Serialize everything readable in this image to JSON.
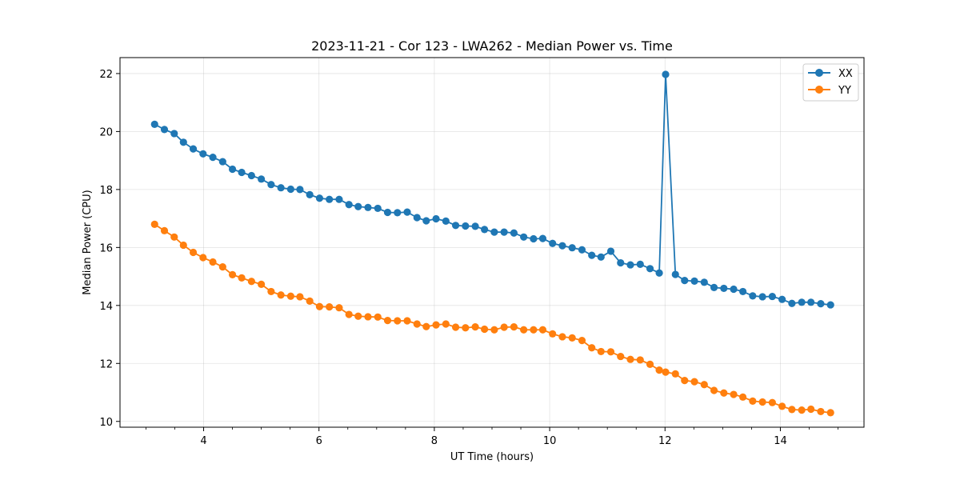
{
  "chart_data": {
    "type": "line",
    "title": "2023-11-21 - Cor 123 - LWA262 - Median Power vs. Time",
    "xlabel": "UT Time (hours)",
    "ylabel": "Median Power (CPU)",
    "xlim": [
      2.55,
      15.45
    ],
    "ylim": [
      9.8,
      22.55
    ],
    "xticks": [
      4,
      6,
      8,
      10,
      12,
      14
    ],
    "xticks_minor": [
      3.0,
      3.5,
      4.5,
      5.0,
      5.5,
      6.5,
      7.0,
      7.5,
      8.5,
      9.0,
      9.5,
      10.5,
      11.0,
      11.5,
      12.5,
      13.0,
      13.5,
      14.5,
      15.0
    ],
    "yticks": [
      10,
      12,
      14,
      16,
      18,
      20,
      22
    ],
    "grid": true,
    "legend_position": "top-right",
    "x": [
      3.15,
      3.32,
      3.49,
      3.65,
      3.82,
      3.99,
      4.16,
      4.33,
      4.5,
      4.66,
      4.83,
      5.0,
      5.17,
      5.34,
      5.51,
      5.67,
      5.84,
      6.01,
      6.18,
      6.35,
      6.52,
      6.68,
      6.85,
      7.02,
      7.19,
      7.36,
      7.53,
      7.7,
      7.86,
      8.03,
      8.2,
      8.37,
      8.54,
      8.71,
      8.87,
      9.04,
      9.21,
      9.38,
      9.55,
      9.72,
      9.88,
      10.05,
      10.22,
      10.39,
      10.56,
      10.73,
      10.89,
      11.06,
      11.23,
      11.4,
      11.57,
      11.74,
      11.9,
      12.01,
      12.18,
      12.34,
      12.51,
      12.68,
      12.85,
      13.02,
      13.19,
      13.35,
      13.52,
      13.69,
      13.86,
      14.03,
      14.2,
      14.37,
      14.53,
      14.7,
      14.87
    ],
    "series": [
      {
        "name": "XX",
        "color": "#1f77b4",
        "values": [
          20.25,
          20.07,
          19.93,
          19.63,
          19.4,
          19.23,
          19.11,
          18.96,
          18.7,
          18.59,
          18.48,
          18.36,
          18.17,
          18.06,
          18.01,
          18.0,
          17.82,
          17.7,
          17.66,
          17.66,
          17.48,
          17.41,
          17.38,
          17.35,
          17.21,
          17.2,
          17.22,
          17.03,
          16.92,
          16.99,
          16.91,
          16.76,
          16.74,
          16.73,
          16.62,
          16.53,
          16.53,
          16.5,
          16.36,
          16.3,
          16.31,
          16.14,
          16.06,
          15.99,
          15.92,
          15.73,
          15.67,
          15.87,
          15.47,
          15.4,
          15.42,
          15.27,
          15.12,
          21.97,
          15.07,
          14.86,
          14.84,
          14.8,
          14.62,
          14.59,
          14.56,
          14.48,
          14.33,
          14.3,
          14.31,
          14.21,
          14.07,
          14.11,
          14.11,
          14.06,
          14.02
        ]
      },
      {
        "name": "YY",
        "color": "#ff7f0e",
        "values": [
          16.8,
          16.58,
          16.36,
          16.08,
          15.83,
          15.65,
          15.5,
          15.33,
          15.06,
          14.95,
          14.83,
          14.73,
          14.48,
          14.36,
          14.32,
          14.3,
          14.15,
          13.96,
          13.95,
          13.92,
          13.69,
          13.63,
          13.61,
          13.6,
          13.48,
          13.47,
          13.47,
          13.36,
          13.27,
          13.33,
          13.36,
          13.25,
          13.23,
          13.26,
          13.18,
          13.16,
          13.25,
          13.26,
          13.16,
          13.16,
          13.16,
          13.02,
          12.92,
          12.88,
          12.79,
          12.54,
          12.41,
          12.4,
          12.24,
          12.14,
          12.12,
          11.97,
          11.77,
          11.7,
          11.64,
          11.41,
          11.37,
          11.27,
          11.07,
          10.98,
          10.93,
          10.84,
          10.7,
          10.67,
          10.65,
          10.52,
          10.41,
          10.39,
          10.42,
          10.34,
          10.3
        ]
      }
    ]
  }
}
